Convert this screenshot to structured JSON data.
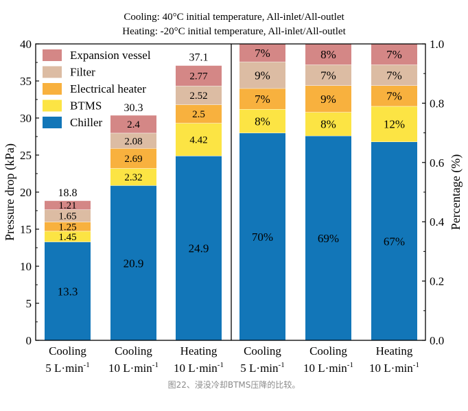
{
  "title_line1": "Cooling: 40°C initial temperature, All-inlet/All-outlet",
  "title_line2": "Heating: -20°C initial temperature, All-inlet/All-outlet",
  "caption": "图22、浸没冷却BTMS压降的比较。",
  "chart_data": [
    {
      "type": "bar",
      "stacked": true,
      "ylabel": "Pressure drop (kPa)",
      "ylim": [
        0,
        40
      ],
      "yticks": [
        "0",
        "5",
        "10",
        "15",
        "20",
        "25",
        "30",
        "35",
        "40"
      ],
      "categories": [
        [
          "Cooling",
          "5 L·min-1"
        ],
        [
          "Cooling",
          "10 L·min-1"
        ],
        [
          "Heating",
          "10 L·min-1"
        ]
      ],
      "totals": [
        18.8,
        30.3,
        37.1
      ],
      "total_labels": [
        "18.8",
        "30.3",
        "37.1"
      ],
      "legend_position": "top-left",
      "series": [
        {
          "name": "Chiller",
          "color": "#1276b8",
          "values": [
            13.3,
            20.9,
            24.9
          ],
          "labels": [
            "13.3",
            "20.9",
            "24.9"
          ]
        },
        {
          "name": "BTMS",
          "color": "#fce444",
          "values": [
            1.45,
            2.32,
            4.42
          ],
          "labels": [
            "1.45",
            "2.32",
            "4.42"
          ]
        },
        {
          "name": "Electrical heater",
          "color": "#f8b13e",
          "values": [
            1.25,
            2.69,
            2.5
          ],
          "labels": [
            "1.25",
            "2.69",
            "2.5"
          ]
        },
        {
          "name": "Filter",
          "color": "#dcbca3",
          "values": [
            1.65,
            2.08,
            2.52
          ],
          "labels": [
            "1.65",
            "2.08",
            "2.52"
          ]
        },
        {
          "name": "Expansion vessel",
          "color": "#d48786",
          "values": [
            1.21,
            2.4,
            2.77
          ],
          "labels": [
            "1.21",
            "2.4",
            "2.77"
          ]
        }
      ]
    },
    {
      "type": "bar",
      "stacked": true,
      "ylabel": "Percentage (%)",
      "ylim": [
        0,
        1
      ],
      "yticks": [
        "0.0",
        "0.2",
        "0.4",
        "0.6",
        "0.8",
        "1.0"
      ],
      "categories": [
        [
          "Cooling",
          "5 L·min-1"
        ],
        [
          "Cooling",
          "10 L·min-1"
        ],
        [
          "Heating",
          "10 L·min-1"
        ]
      ],
      "series": [
        {
          "name": "Chiller",
          "color": "#1276b8",
          "values": [
            0.7,
            0.69,
            0.67
          ],
          "labels": [
            "70%",
            "69%",
            "67%"
          ]
        },
        {
          "name": "BTMS",
          "color": "#fce444",
          "values": [
            0.08,
            0.08,
            0.12
          ],
          "labels": [
            "8%",
            "8%",
            "12%"
          ]
        },
        {
          "name": "Electrical heater",
          "color": "#f8b13e",
          "values": [
            0.07,
            0.09,
            0.07
          ],
          "labels": [
            "7%",
            "9%",
            "7%"
          ]
        },
        {
          "name": "Filter",
          "color": "#dcbca3",
          "values": [
            0.09,
            0.07,
            0.07
          ],
          "labels": [
            "9%",
            "7%",
            "7%"
          ]
        },
        {
          "name": "Expansion vessel",
          "color": "#d48786",
          "values": [
            0.07,
            0.08,
            0.07
          ],
          "labels": [
            "7%",
            "8%",
            "7%"
          ]
        }
      ]
    }
  ]
}
